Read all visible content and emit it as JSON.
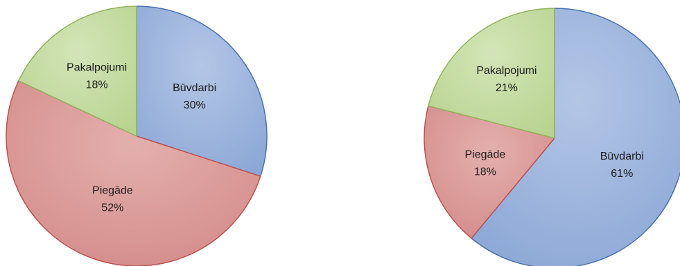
{
  "chart_data": [
    {
      "type": "pie",
      "title": "",
      "slices": [
        {
          "label": "Būvdarbi",
          "percent_label": "30%",
          "value": 30,
          "color": "#9fb6dc",
          "stroke": "#4a72b0"
        },
        {
          "label": "Piegāde",
          "percent_label": "52%",
          "value": 52,
          "color": "#dc9a98",
          "stroke": "#c0504d"
        },
        {
          "label": "Pakalpojumi",
          "percent_label": "18%",
          "value": 18,
          "color": "#c4dba2",
          "stroke": "#8fb35a"
        }
      ]
    },
    {
      "type": "pie",
      "title": "",
      "slices": [
        {
          "label": "Būvdarbi",
          "percent_label": "61%",
          "value": 61,
          "color": "#9fb6dc",
          "stroke": "#4a72b0"
        },
        {
          "label": "Piegāde",
          "percent_label": "18%",
          "value": 18,
          "color": "#dc9a98",
          "stroke": "#c0504d"
        },
        {
          "label": "Pakalpojumi",
          "percent_label": "21%",
          "value": 21,
          "color": "#c4dba2",
          "stroke": "#8fb35a"
        }
      ]
    }
  ]
}
